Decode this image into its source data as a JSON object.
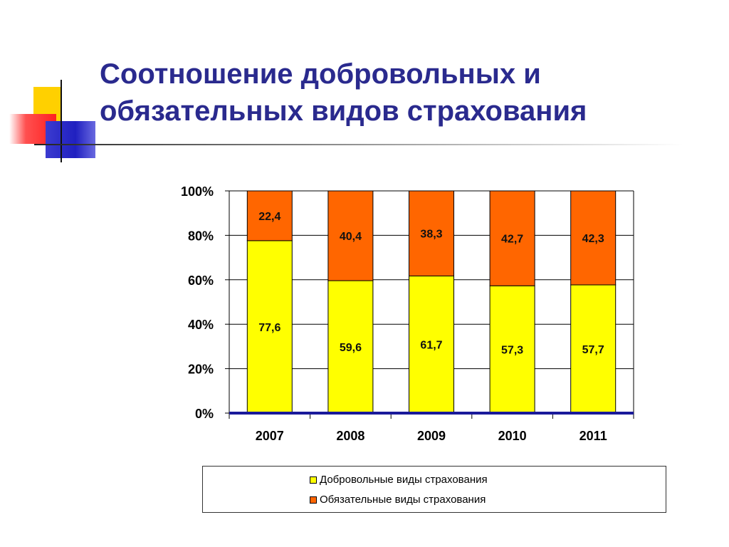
{
  "title": {
    "line1": "Соотношение добровольных и",
    "line2": "обязательных видов страхования"
  },
  "colors": {
    "title": "#2a2a8e",
    "voluntary": "#ffff00",
    "mandatory": "#ff6600",
    "baseline": "#1a1a9a"
  },
  "chart_data": {
    "type": "bar",
    "stacked": "percent",
    "categories": [
      "2007",
      "2008",
      "2009",
      "2010",
      "2011"
    ],
    "series": [
      {
        "name": "Добровольные виды страхования",
        "values": [
          77.6,
          59.6,
          61.7,
          57.3,
          57.7
        ],
        "labels": [
          "77,6",
          "59,6",
          "61,7",
          "57,3",
          "57,7"
        ],
        "color": "#ffff00"
      },
      {
        "name": "Обязательные виды страхования",
        "values": [
          22.4,
          40.4,
          38.3,
          42.7,
          42.3
        ],
        "labels": [
          "22,4",
          "40,4",
          "38,3",
          "42,7",
          "42,3"
        ],
        "color": "#ff6600"
      }
    ],
    "yticks": [
      "0%",
      "20%",
      "40%",
      "60%",
      "80%",
      "100%"
    ],
    "ylim": [
      0,
      100
    ],
    "grid": true,
    "legend": "bottom"
  }
}
